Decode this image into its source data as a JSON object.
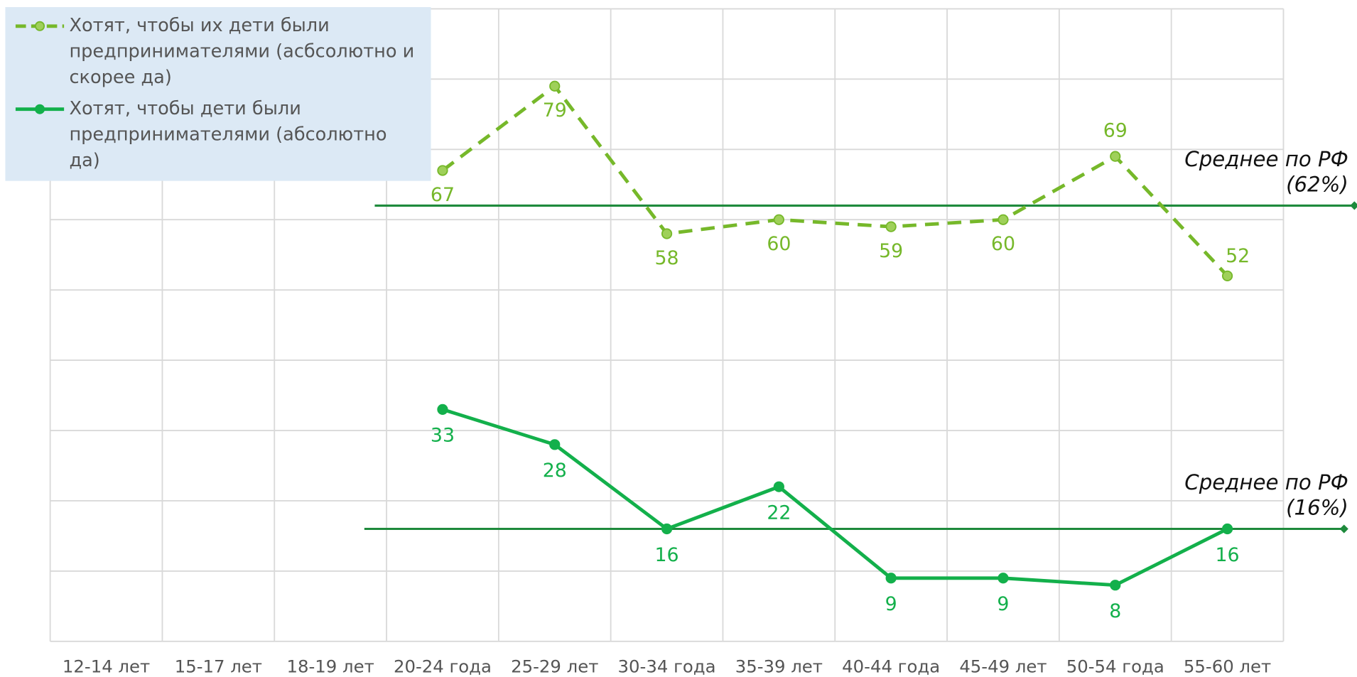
{
  "chart_data": {
    "type": "line",
    "categories": [
      "12-14 лет",
      "15-17 лет",
      "18-19 лет",
      "20-24 года",
      "25-29 лет",
      "30-34 года",
      "35-39 лет",
      "40-44 года",
      "45-49 лет",
      "50-54 года",
      "55-60 лет"
    ],
    "series": [
      {
        "name": "Хотят, чтобы их дети были предпринимателями (асбсолютно и скорее да)",
        "color": "#76b82a",
        "line_style": "dashed",
        "values": [
          null,
          null,
          null,
          67,
          79,
          58,
          60,
          59,
          60,
          69,
          52
        ]
      },
      {
        "name": "Хотят, чтобы дети были предпринимателями (абсолютно да)",
        "color": "#13b04b",
        "line_style": "solid",
        "values": [
          null,
          null,
          null,
          33,
          28,
          16,
          22,
          9,
          9,
          8,
          16
        ]
      }
    ],
    "ylim": [
      0,
      90
    ],
    "yticks": [
      0,
      10,
      20,
      30,
      40,
      50,
      60,
      70,
      80,
      90
    ],
    "grid": true,
    "reference_lines": [
      {
        "value": 62,
        "label": "Среднее по РФ",
        "value_label": "(62%)",
        "color": "#1e8a3c"
      },
      {
        "value": 16,
        "label": "Среднее по РФ",
        "value_label": "(16%)",
        "color": "#1e8a3c"
      }
    ]
  }
}
